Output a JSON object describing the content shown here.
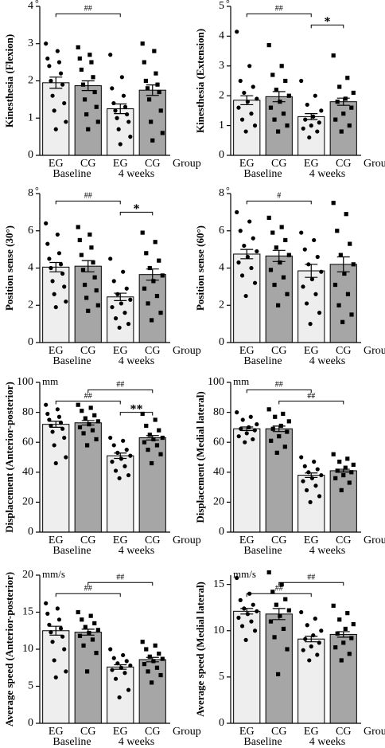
{
  "chart_data": [
    {
      "type": "bar",
      "y_label": "Kinesthesia (Flexion)",
      "unit": "°",
      "x_label": "Group",
      "categories": [
        "EG",
        "CG",
        "EG",
        "CG"
      ],
      "group_labels": [
        "Baseline",
        "4 weeks"
      ],
      "bar_colors": [
        "#eeeeee",
        "#a6a6a6",
        "#eeeeee",
        "#a6a6a6"
      ],
      "markers": [
        "circle",
        "square",
        "circle",
        "square"
      ],
      "values": [
        1.95,
        1.87,
        1.25,
        1.75
      ],
      "errors": [
        0.15,
        0.13,
        0.13,
        0.14
      ],
      "points": [
        [
          3.0,
          2.8,
          2.6,
          2.5,
          2.4,
          2.2,
          2.0,
          1.9,
          1.6,
          1.4,
          1.2,
          0.9,
          0.7
        ],
        [
          2.9,
          2.7,
          2.6,
          2.5,
          2.3,
          2.1,
          1.9,
          1.7,
          1.5,
          1.3,
          1.1,
          0.9,
          0.7
        ],
        [
          2.7,
          2.1,
          1.8,
          1.6,
          1.4,
          1.3,
          1.2,
          1.1,
          1.0,
          0.9,
          0.7,
          0.5,
          0.3
        ],
        [
          3.0,
          2.8,
          2.5,
          2.2,
          2.0,
          1.9,
          1.8,
          1.7,
          1.5,
          1.2,
          0.9,
          0.6,
          0.4
        ]
      ],
      "brackets": [
        {
          "from": 0,
          "to": 2,
          "label": "##"
        }
      ],
      "ylim": [
        0,
        4
      ],
      "yticks": [
        0,
        1,
        2,
        3,
        4
      ]
    },
    {
      "type": "bar",
      "y_label": "Kinesthesia (Extension)",
      "unit": "°",
      "x_label": "Group",
      "categories": [
        "EG",
        "CG",
        "EG",
        "CG"
      ],
      "group_labels": [
        "Baseline",
        "4 weeks"
      ],
      "bar_colors": [
        "#eeeeee",
        "#a6a6a6",
        "#eeeeee",
        "#a6a6a6"
      ],
      "markers": [
        "circle",
        "square",
        "circle",
        "square"
      ],
      "values": [
        1.85,
        1.97,
        1.3,
        1.8
      ],
      "errors": [
        0.15,
        0.17,
        0.1,
        0.12
      ],
      "points": [
        [
          4.15,
          3.0,
          2.5,
          2.3,
          2.1,
          1.9,
          1.8,
          1.6,
          1.4,
          1.2,
          1.0,
          0.8
        ],
        [
          3.7,
          3.0,
          2.7,
          2.5,
          2.2,
          2.0,
          1.8,
          1.6,
          1.4,
          1.2,
          1.0,
          0.8
        ],
        [
          2.5,
          2.0,
          1.7,
          1.5,
          1.3,
          1.2,
          1.1,
          1.0,
          0.9,
          0.8,
          0.6
        ],
        [
          3.35,
          2.6,
          2.3,
          2.1,
          1.9,
          1.8,
          1.6,
          1.4,
          1.2,
          1.0,
          0.8
        ]
      ],
      "brackets": [
        {
          "from": 0,
          "to": 2,
          "label": "##"
        },
        {
          "from": 2,
          "to": 3,
          "label": "*"
        }
      ],
      "ylim": [
        0,
        5
      ],
      "yticks": [
        0,
        1,
        2,
        3,
        4,
        5
      ]
    },
    {
      "type": "bar",
      "y_label": "Position sense (30°)",
      "unit": "°",
      "x_label": "Group",
      "categories": [
        "EG",
        "CG",
        "EG",
        "CG"
      ],
      "group_labels": [
        "Baseline",
        "4 weeks"
      ],
      "bar_colors": [
        "#eeeeee",
        "#a6a6a6",
        "#eeeeee",
        "#a6a6a6"
      ],
      "markers": [
        "circle",
        "square",
        "circle",
        "square"
      ],
      "values": [
        4.05,
        4.1,
        2.45,
        3.65
      ],
      "errors": [
        0.25,
        0.3,
        0.2,
        0.3
      ],
      "points": [
        [
          6.4,
          5.8,
          5.3,
          4.8,
          4.5,
          4.2,
          4.0,
          3.7,
          3.3,
          3.0,
          2.6,
          2.2,
          1.9
        ],
        [
          6.2,
          5.8,
          5.5,
          5.1,
          4.7,
          4.3,
          3.9,
          3.5,
          3.1,
          2.8,
          2.4,
          2.0,
          1.7
        ],
        [
          4.5,
          3.8,
          3.3,
          2.9,
          2.6,
          2.3,
          2.1,
          1.9,
          1.6,
          1.3,
          1.0,
          0.8
        ],
        [
          5.9,
          5.4,
          4.8,
          4.4,
          4.0,
          3.6,
          3.3,
          2.9,
          2.5,
          2.1,
          1.6,
          1.2
        ]
      ],
      "brackets": [
        {
          "from": 0,
          "to": 2,
          "label": "##"
        },
        {
          "from": 2,
          "to": 3,
          "label": "*"
        }
      ],
      "ylim": [
        0,
        8
      ],
      "yticks": [
        0,
        2,
        4,
        6,
        8
      ]
    },
    {
      "type": "bar",
      "y_label": "Position sense (60°)",
      "unit": "°",
      "x_label": "Group",
      "categories": [
        "EG",
        "CG",
        "EG",
        "CG"
      ],
      "group_labels": [
        "Baseline",
        "4 weeks"
      ],
      "bar_colors": [
        "#eeeeee",
        "#a6a6a6",
        "#eeeeee",
        "#a6a6a6"
      ],
      "markers": [
        "circle",
        "square",
        "circle",
        "square"
      ],
      "values": [
        4.75,
        4.65,
        3.85,
        4.2
      ],
      "errors": [
        0.25,
        0.3,
        0.35,
        0.4
      ],
      "points": [
        [
          7.0,
          6.5,
          6.0,
          5.6,
          5.2,
          4.9,
          4.6,
          4.3,
          4.0,
          3.6,
          3.2,
          2.5
        ],
        [
          6.7,
          6.2,
          5.9,
          5.5,
          5.1,
          4.7,
          4.3,
          3.9,
          3.5,
          3.1,
          2.6,
          2.0
        ],
        [
          5.9,
          5.5,
          5.0,
          4.6,
          4.2,
          3.8,
          3.4,
          3.0,
          2.6,
          2.1,
          1.6,
          1.0
        ],
        [
          7.5,
          6.9,
          6.0,
          5.3,
          4.7,
          4.2,
          3.7,
          3.1,
          2.6,
          2.0,
          1.5,
          1.1
        ]
      ],
      "brackets": [
        {
          "from": 0,
          "to": 2,
          "label": "#"
        }
      ],
      "ylim": [
        0,
        8
      ],
      "yticks": [
        0,
        2,
        4,
        6,
        8
      ]
    },
    {
      "type": "bar",
      "y_label": "Displacement (Anterior-posterior)",
      "unit": "mm",
      "x_label": "Group",
      "categories": [
        "EG",
        "CG",
        "EG",
        "CG"
      ],
      "group_labels": [
        "Baseline",
        "4 weeks"
      ],
      "bar_colors": [
        "#eeeeee",
        "#a6a6a6",
        "#eeeeee",
        "#a6a6a6"
      ],
      "markers": [
        "circle",
        "square",
        "circle",
        "square"
      ],
      "values": [
        72,
        73,
        51,
        63
      ],
      "errors": [
        2,
        1.5,
        1.8,
        1.5
      ],
      "points": [
        [
          85,
          82,
          79,
          77,
          75,
          73,
          71,
          69,
          67,
          63,
          58,
          50,
          46
        ],
        [
          85,
          83,
          81,
          78,
          76,
          74,
          72,
          70,
          68,
          66,
          62,
          58
        ],
        [
          63,
          61,
          58,
          55,
          53,
          51,
          49,
          47,
          44,
          41,
          38,
          36
        ],
        [
          79,
          75,
          71,
          68,
          65,
          63,
          62,
          60,
          58,
          55,
          52,
          46
        ]
      ],
      "brackets": [
        {
          "from": 1,
          "to": 3,
          "label": "##"
        },
        {
          "from": 0,
          "to": 2,
          "label": "##"
        },
        {
          "from": 2,
          "to": 3,
          "label": "**"
        }
      ],
      "ylim": [
        0,
        100
      ],
      "yticks": [
        0,
        20,
        40,
        60,
        80,
        100
      ]
    },
    {
      "type": "bar",
      "y_label": "Displacement (Medial lateral)",
      "unit": "mm",
      "x_label": "Group",
      "categories": [
        "EG",
        "CG",
        "EG",
        "CG"
      ],
      "group_labels": [
        "Baseline",
        "4 weeks"
      ],
      "bar_colors": [
        "#eeeeee",
        "#a6a6a6",
        "#eeeeee",
        "#a6a6a6"
      ],
      "markers": [
        "circle",
        "square",
        "circle",
        "square"
      ],
      "values": [
        69,
        69,
        38,
        41
      ],
      "errors": [
        1.2,
        1.8,
        1.5,
        1
      ],
      "points": [
        [
          80,
          77,
          75,
          72,
          70,
          69,
          68,
          66,
          64,
          62,
          60
        ],
        [
          82,
          79,
          77,
          74,
          71,
          69,
          67,
          64,
          61,
          57,
          53
        ],
        [
          50,
          47,
          44,
          42,
          40,
          38,
          36,
          34,
          31,
          28,
          24,
          20
        ],
        [
          52,
          49,
          47,
          45,
          43,
          41,
          40,
          38,
          36,
          33,
          28
        ]
      ],
      "brackets": [
        {
          "from": 0,
          "to": 2,
          "label": "##"
        },
        {
          "from": 1,
          "to": 3,
          "label": "##"
        }
      ],
      "ylim": [
        0,
        100
      ],
      "yticks": [
        0,
        20,
        40,
        60,
        80,
        100
      ]
    },
    {
      "type": "bar",
      "y_label": "Average speed (Anterior-posterior)",
      "unit": "mm/s",
      "x_label": "Group",
      "categories": [
        "EG",
        "CG",
        "EG",
        "CG"
      ],
      "group_labels": [
        "Baseline",
        "4 weeks"
      ],
      "bar_colors": [
        "#eeeeee",
        "#a6a6a6",
        "#eeeeee",
        "#a6a6a6"
      ],
      "markers": [
        "circle",
        "square",
        "circle",
        "square"
      ],
      "values": [
        12.5,
        12.3,
        7.6,
        8.6
      ],
      "errors": [
        0.6,
        0.4,
        0.3,
        0.3
      ],
      "points": [
        [
          16.2,
          15.5,
          14.8,
          14.0,
          13.3,
          12.8,
          12.3,
          11.7,
          11.0,
          10.0,
          8.5,
          7.0,
          6.2
        ],
        [
          15.0,
          14.5,
          14.0,
          13.5,
          13.0,
          12.6,
          12.2,
          11.8,
          11.3,
          10.5,
          9.5,
          7.0
        ],
        [
          10.0,
          9.2,
          8.8,
          8.4,
          8.1,
          7.8,
          7.5,
          7.2,
          6.8,
          6.0,
          4.5,
          3.5
        ],
        [
          11.0,
          10.5,
          10.0,
          9.4,
          9.0,
          8.7,
          8.4,
          8.0,
          7.5,
          7.0,
          6.5,
          5.5
        ]
      ],
      "brackets": [
        {
          "from": 1,
          "to": 3,
          "label": "##"
        },
        {
          "from": 0,
          "to": 2,
          "label": "##"
        }
      ],
      "ylim": [
        0,
        20
      ],
      "yticks": [
        0,
        5,
        10,
        15,
        20
      ]
    },
    {
      "type": "bar",
      "y_label": "Average speed (Medial lateral)",
      "unit": "mm/s",
      "x_label": "Group",
      "categories": [
        "EG",
        "CG",
        "EG",
        "CG"
      ],
      "group_labels": [
        "Baseline",
        "4 weeks"
      ],
      "bar_colors": [
        "#eeeeee",
        "#a6a6a6",
        "#eeeeee",
        "#a6a6a6"
      ],
      "markers": [
        "circle",
        "square",
        "circle",
        "square"
      ],
      "values": [
        12.1,
        11.8,
        9.1,
        9.6
      ],
      "errors": [
        0.3,
        0.6,
        0.3,
        0.3
      ],
      "points": [
        [
          15.7,
          14.0,
          13.3,
          12.8,
          12.4,
          12.1,
          11.8,
          11.4,
          11.0,
          10.5,
          10.0,
          9.0
        ],
        [
          16.3,
          15.0,
          14.2,
          13.4,
          12.8,
          12.2,
          11.6,
          11.0,
          10.2,
          9.3,
          8.0,
          5.3
        ],
        [
          12.0,
          11.3,
          10.6,
          10.0,
          9.5,
          9.1,
          8.7,
          8.3,
          7.9,
          7.4,
          6.8
        ],
        [
          12.7,
          11.9,
          11.2,
          10.7,
          10.2,
          9.7,
          9.2,
          8.7,
          8.2,
          7.5,
          6.8
        ]
      ],
      "brackets": [
        {
          "from": 1,
          "to": 3,
          "label": "##"
        },
        {
          "from": 0,
          "to": 2,
          "label": "##"
        }
      ],
      "ylim": [
        0,
        16
      ],
      "yticks": [
        0,
        5,
        10,
        15
      ]
    }
  ]
}
